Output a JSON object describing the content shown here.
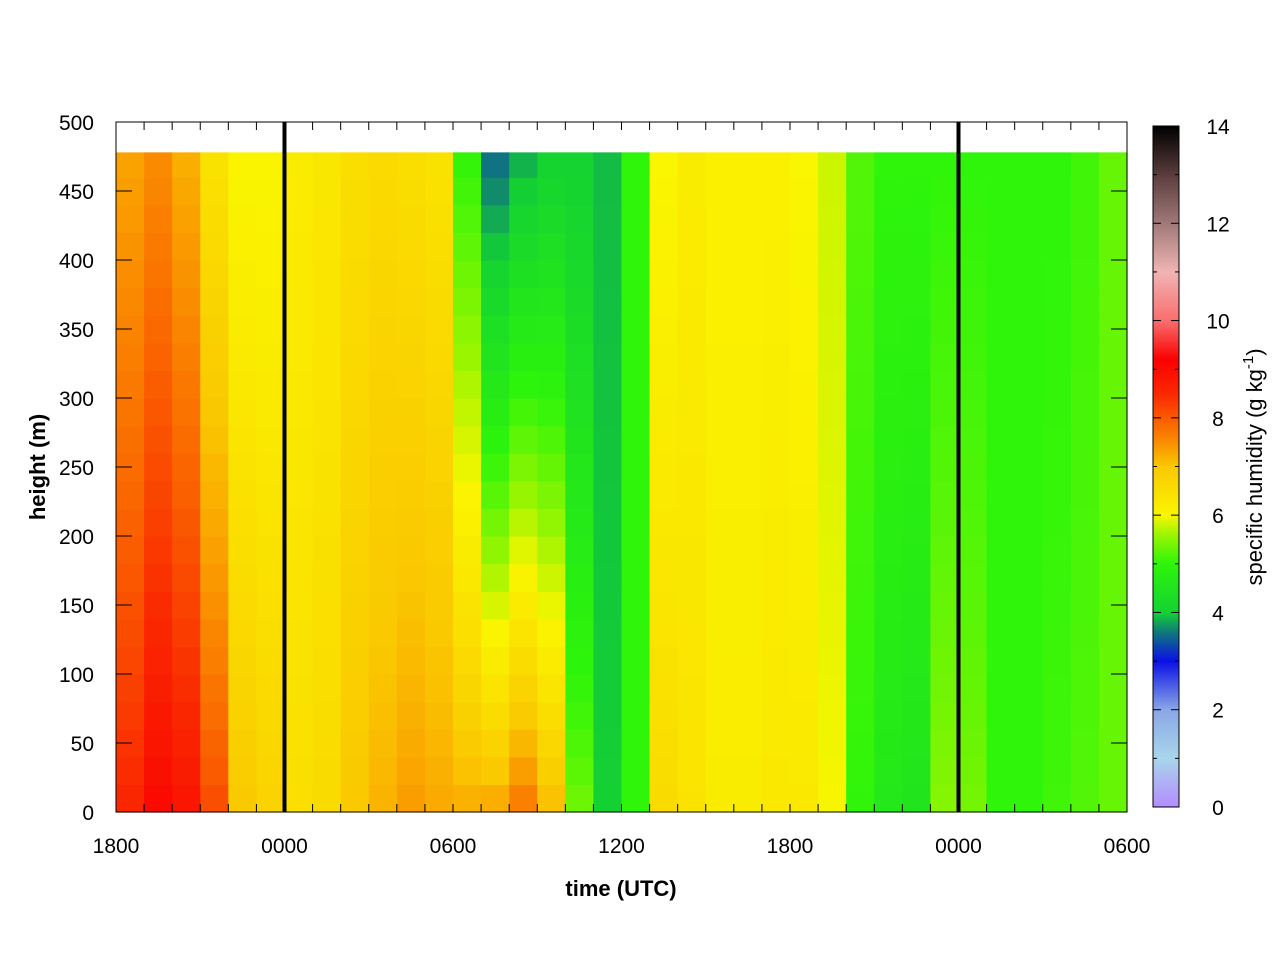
{
  "chart_data": {
    "type": "heatmap",
    "title": "",
    "xlabel": "time (UTC)",
    "ylabel": "height (m)",
    "colorbar_label": "specific humidity (g kg",
    "colorbar_label_sup": "-1",
    "colorbar_label_end": ")",
    "x_tick_labels": [
      "1800",
      "0000",
      "0600",
      "1200",
      "1800",
      "0000",
      "0600"
    ],
    "x_range_hours": [
      0,
      36
    ],
    "y_ticks": [
      0,
      50,
      100,
      150,
      200,
      250,
      300,
      350,
      400,
      450,
      500
    ],
    "ylim": [
      0,
      500
    ],
    "colorbar_ticks": [
      0,
      2,
      4,
      6,
      8,
      10,
      12,
      14
    ],
    "colorbar_range": [
      0,
      14
    ],
    "vertical_marker_hours": [
      6,
      30
    ],
    "data_height_range": [
      0,
      478
    ],
    "grid": false,
    "colormap_stops": [
      {
        "value": 0,
        "color": "#b48cff"
      },
      {
        "value": 1,
        "color": "#a8d6ea"
      },
      {
        "value": 2,
        "color": "#8aa6e6"
      },
      {
        "value": 3,
        "color": "#0a10e6"
      },
      {
        "value": 3.6,
        "color": "#0f7a7a"
      },
      {
        "value": 4,
        "color": "#14d232"
      },
      {
        "value": 5,
        "color": "#2ef50a"
      },
      {
        "value": 5.6,
        "color": "#9cf500"
      },
      {
        "value": 6,
        "color": "#faf500"
      },
      {
        "value": 7,
        "color": "#fac800"
      },
      {
        "value": 7.6,
        "color": "#fa8200"
      },
      {
        "value": 8.5,
        "color": "#fa2800"
      },
      {
        "value": 9.2,
        "color": "#fa0000"
      },
      {
        "value": 10,
        "color": "#fa6e6e"
      },
      {
        "value": 11,
        "color": "#f0b4b4"
      },
      {
        "value": 12,
        "color": "#a07878"
      },
      {
        "value": 13,
        "color": "#5a3c3c"
      },
      {
        "value": 14,
        "color": "#000000"
      }
    ],
    "profiles": [
      {
        "t": 0.5,
        "bottom": 8.6,
        "top": 7.3
      },
      {
        "t": 1.5,
        "bottom": 9.1,
        "top": 7.5
      },
      {
        "t": 2.5,
        "bottom": 8.9,
        "top": 7.2
      },
      {
        "t": 3.5,
        "bottom": 8.2,
        "top": 6.4
      },
      {
        "t": 4.5,
        "bottom": 7.0,
        "top": 6.0
      },
      {
        "t": 5.5,
        "bottom": 6.8,
        "top": 6.0
      },
      {
        "t": 6.5,
        "bottom": 6.5,
        "top": 6.2
      },
      {
        "t": 7.5,
        "bottom": 6.6,
        "top": 6.3
      },
      {
        "t": 8.5,
        "bottom": 7.0,
        "top": 6.5
      },
      {
        "t": 9.5,
        "bottom": 7.2,
        "top": 6.6
      },
      {
        "t": 10.5,
        "bottom": 7.4,
        "top": 6.5
      },
      {
        "t": 11.5,
        "bottom": 7.3,
        "top": 6.4
      },
      {
        "t": 12.5,
        "bottom": 7.3,
        "top": 5.0
      },
      {
        "t": 13.5,
        "bottom": 7.4,
        "top": 3.5
      },
      {
        "t": 14.5,
        "bottom": 7.8,
        "top": 3.8
      },
      {
        "t": 15.5,
        "bottom": 7.2,
        "top": 4.0
      },
      {
        "t": 16.5,
        "bottom": 5.4,
        "top": 4.0
      },
      {
        "t": 17.5,
        "bottom": 4.0,
        "top": 3.9
      },
      {
        "t": 18.5,
        "bottom": 5.0,
        "top": 5.0
      },
      {
        "t": 19.5,
        "bottom": 6.6,
        "top": 6.0
      },
      {
        "t": 20.5,
        "bottom": 6.4,
        "top": 6.2
      },
      {
        "t": 21.5,
        "bottom": 6.2,
        "top": 6.1
      },
      {
        "t": 22.5,
        "bottom": 6.2,
        "top": 6.1
      },
      {
        "t": 23.5,
        "bottom": 6.3,
        "top": 6.1
      },
      {
        "t": 24.5,
        "bottom": 6.3,
        "top": 6.0
      },
      {
        "t": 25.5,
        "bottom": 6.0,
        "top": 5.8
      },
      {
        "t": 26.5,
        "bottom": 5.0,
        "top": 5.2
      },
      {
        "t": 27.5,
        "bottom": 4.6,
        "top": 5.0
      },
      {
        "t": 28.5,
        "bottom": 4.5,
        "top": 5.0
      },
      {
        "t": 29.5,
        "bottom": 5.5,
        "top": 5.0
      },
      {
        "t": 30.5,
        "bottom": 5.4,
        "top": 5.0
      },
      {
        "t": 31.5,
        "bottom": 5.0,
        "top": 5.0
      },
      {
        "t": 32.5,
        "bottom": 5.0,
        "top": 5.0
      },
      {
        "t": 33.5,
        "bottom": 5.1,
        "top": 5.0
      },
      {
        "t": 34.5,
        "bottom": 5.2,
        "top": 5.1
      },
      {
        "t": 35.5,
        "bottom": 5.3,
        "top": 5.3
      }
    ]
  }
}
